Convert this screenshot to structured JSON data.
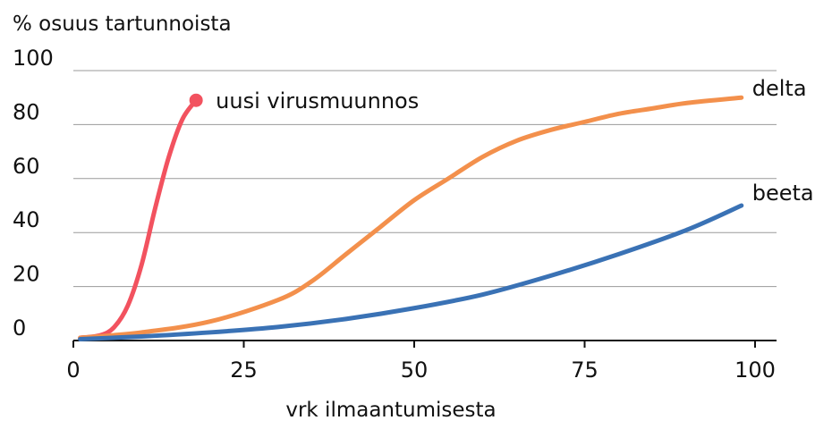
{
  "chart_data": {
    "type": "line",
    "title": "",
    "ylabel": "% osuus tartunnoista",
    "xlabel": "vrk ilmaantumisesta",
    "xlim": [
      0,
      100
    ],
    "ylim": [
      0,
      100
    ],
    "xticks": [
      "0",
      "25",
      "50",
      "75",
      "100"
    ],
    "yticks": [
      "0",
      "20",
      "40",
      "60",
      "80",
      "100"
    ],
    "grid": "horizontal",
    "legend": "direct labels at line ends",
    "series": [
      {
        "name": "uusi virusmuunnos",
        "color": "#f2525f",
        "end_marker": true,
        "points": [
          [
            1,
            1
          ],
          [
            4,
            2
          ],
          [
            6,
            5
          ],
          [
            8,
            13
          ],
          [
            10,
            28
          ],
          [
            12,
            49
          ],
          [
            14,
            68
          ],
          [
            16,
            82
          ],
          [
            18,
            89
          ]
        ]
      },
      {
        "name": "delta",
        "color": "#f3904c",
        "end_marker": false,
        "points": [
          [
            1,
            1
          ],
          [
            10,
            3
          ],
          [
            20,
            7
          ],
          [
            30,
            15
          ],
          [
            35,
            22
          ],
          [
            40,
            32
          ],
          [
            45,
            42
          ],
          [
            50,
            52
          ],
          [
            55,
            60
          ],
          [
            60,
            68
          ],
          [
            65,
            74
          ],
          [
            70,
            78
          ],
          [
            75,
            81
          ],
          [
            80,
            84
          ],
          [
            85,
            86
          ],
          [
            90,
            88
          ],
          [
            98,
            90
          ]
        ]
      },
      {
        "name": "beeta",
        "color": "#3a72b5",
        "end_marker": false,
        "points": [
          [
            1,
            0.5
          ],
          [
            10,
            1.5
          ],
          [
            20,
            3
          ],
          [
            30,
            5
          ],
          [
            40,
            8
          ],
          [
            50,
            12
          ],
          [
            60,
            17
          ],
          [
            70,
            24
          ],
          [
            80,
            32
          ],
          [
            90,
            41
          ],
          [
            98,
            50
          ]
        ]
      }
    ]
  }
}
